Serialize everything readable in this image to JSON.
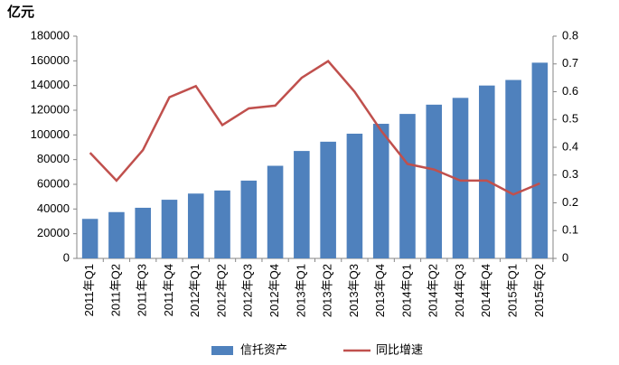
{
  "chart_data": {
    "type": "bar",
    "y_axis_label": "亿元",
    "categories": [
      "2011年Q1",
      "2011年Q2",
      "2011年Q3",
      "2011年Q4",
      "2012年Q1",
      "2012年Q2",
      "2012年Q3",
      "2012年Q4",
      "2013年Q1",
      "2013年Q2",
      "2013年Q3",
      "2013年Q4",
      "2014年Q1",
      "2014年Q2",
      "2014年Q3",
      "2014年Q4",
      "2015年Q1",
      "2015年Q2"
    ],
    "series": [
      {
        "name": "信托资产",
        "type": "bar",
        "color": "#4f81bd",
        "values": [
          32000,
          37500,
          41000,
          47500,
          52500,
          55000,
          63000,
          75000,
          87000,
          94500,
          101000,
          109000,
          117000,
          124500,
          130000,
          140000,
          144500,
          158500
        ]
      },
      {
        "name": "同比增速",
        "type": "line",
        "axis": "y2",
        "color": "#c0504d",
        "values": [
          0.38,
          0.28,
          0.39,
          0.58,
          0.62,
          0.48,
          0.54,
          0.55,
          0.65,
          0.71,
          0.6,
          0.46,
          0.34,
          0.32,
          0.28,
          0.28,
          0.23,
          0.27
        ]
      }
    ],
    "ylim": [
      0,
      180000
    ],
    "yticks": [
      0,
      20000,
      40000,
      60000,
      80000,
      100000,
      120000,
      140000,
      160000,
      180000
    ],
    "y2lim": [
      0,
      0.8
    ],
    "y2ticks": [
      0,
      0.1,
      0.2,
      0.3,
      0.4,
      0.5,
      0.6,
      0.7,
      0.8
    ],
    "legend": "bottom"
  }
}
